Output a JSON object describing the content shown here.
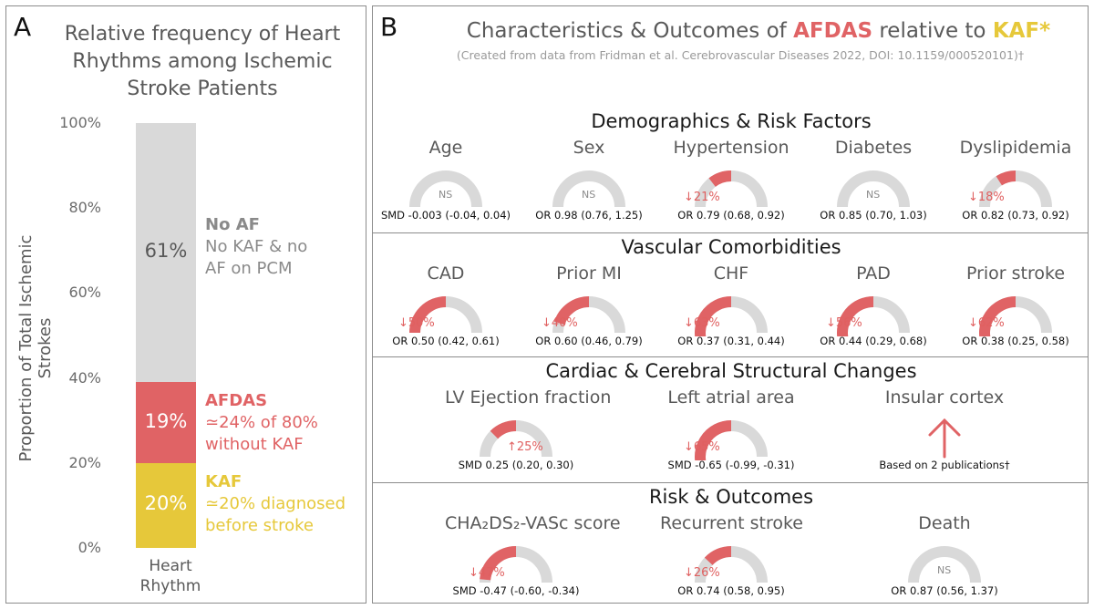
{
  "panel_a": {
    "letter": "A",
    "title_lines": [
      "Relative frequency of Heart",
      "Rhythms among Ischemic",
      "Stroke Patients"
    ],
    "ylabel": "Proportion of Total Ischemic Strokes",
    "xlabel_lines": [
      "Heart",
      "Rhythm"
    ],
    "annotations": {
      "no_af": {
        "bold": "No AF",
        "lines": [
          "No KAF & no",
          "AF on PCM"
        ]
      },
      "afdas": {
        "bold": "AFDAS",
        "lines": [
          "≃24% of 80%",
          "without KAF"
        ]
      },
      "kaf": {
        "bold": "KAF",
        "lines": [
          "≃20% diagnosed",
          "before stroke"
        ]
      }
    }
  },
  "panel_b": {
    "letter": "B",
    "title_parts": {
      "pre": "Characteristics & Outcomes of ",
      "afdas": "AFDAS",
      "mid": " relative to ",
      "kaf": "KAF*"
    },
    "subtitle": "(Created from data from Fridman et al. Cerebrovascular Diseases 2022, DOI: 10.1159/000520101)†",
    "sections": [
      {
        "title": "Demographics & Risk Factors",
        "items": [
          {
            "name": "Age",
            "change": "NS",
            "fraction": 0,
            "stat": "SMD -0.003 (-0.04, 0.04)"
          },
          {
            "name": "Sex",
            "change": "NS",
            "fraction": 0,
            "stat": "OR 0.98 (0.76, 1.25)"
          },
          {
            "name": "Hypertension",
            "change": "↓21%",
            "fraction": 0.21,
            "stat": "OR 0.79 (0.68, 0.92)"
          },
          {
            "name": "Diabetes",
            "change": "NS",
            "fraction": 0,
            "stat": "OR 0.85 (0.70, 1.03)"
          },
          {
            "name": "Dyslipidemia",
            "change": "↓18%",
            "fraction": 0.18,
            "stat": "OR 0.82 (0.73, 0.92)"
          }
        ]
      },
      {
        "title": "Vascular Comorbidities",
        "items": [
          {
            "name": "CAD",
            "change": "↓50%",
            "fraction": 0.5,
            "stat": "OR 0.50 (0.42, 0.61)"
          },
          {
            "name": "Prior MI",
            "change": "↓40%",
            "fraction": 0.4,
            "stat": "OR 0.60 (0.46, 0.79)"
          },
          {
            "name": "CHF",
            "change": "↓63%",
            "fraction": 0.63,
            "stat": "OR 0.37 (0.31, 0.44)"
          },
          {
            "name": "PAD",
            "change": "↓56%",
            "fraction": 0.56,
            "stat": "OR 0.44 (0.29, 0.68)"
          },
          {
            "name": "Prior stroke",
            "change": "↓62%",
            "fraction": 0.62,
            "stat": "OR 0.38 (0.25, 0.58)"
          }
        ]
      },
      {
        "title": "Cardiac & Cerebral Structural Changes",
        "items": [
          {
            "name": "LV Ejection fraction",
            "change": "↑25%",
            "fraction": 0.25,
            "stat": "SMD 0.25 (0.20, 0.30)"
          },
          {
            "name": "Left atrial area",
            "change": "↓65%",
            "fraction": 0.65,
            "stat": "SMD -0.65 (-0.99, -0.31)"
          },
          {
            "name": "Insular cortex",
            "change": "↑",
            "fraction": null,
            "stat": "Based on 2 publications†"
          }
        ]
      },
      {
        "title": "Risk & Outcomes",
        "items": [
          {
            "name": "CHA₂DS₂-VASc score",
            "change": "↓47%",
            "fraction": 0.47,
            "stat": "SMD -0.47 (-0.60, -0.34)"
          },
          {
            "name": "Recurrent stroke",
            "change": "↓26%",
            "fraction": 0.26,
            "stat": "OR 0.74 (0.58, 0.95)"
          },
          {
            "name": "Death",
            "change": "NS",
            "fraction": 0,
            "stat": "OR 0.87 (0.56, 1.37)"
          }
        ]
      }
    ]
  },
  "chart_data": [
    {
      "type": "bar",
      "stacked": true,
      "title": "Relative frequency of Heart Rhythms among Ischemic Stroke Patients",
      "xlabel": "Heart Rhythm",
      "ylabel": "Proportion of Total Ischemic Strokes",
      "ylim": [
        0,
        100
      ],
      "yticks": [
        "0%",
        "20%",
        "40%",
        "60%",
        "80%",
        "100%"
      ],
      "categories": [
        "Heart Rhythm"
      ],
      "series": [
        {
          "name": "KAF",
          "values": [
            20
          ],
          "label": "20%",
          "color": "#e6c83a"
        },
        {
          "name": "AFDAS",
          "values": [
            19
          ],
          "label": "19%",
          "color": "#e06365"
        },
        {
          "name": "No AF",
          "values": [
            61
          ],
          "label": "61%",
          "color": "#d9d9d9"
        }
      ]
    }
  ],
  "colors": {
    "kaf": "#e6c83a",
    "afdas": "#e06365",
    "noaf": "#d9d9d9",
    "noaf_text": "#8a8a8a"
  }
}
